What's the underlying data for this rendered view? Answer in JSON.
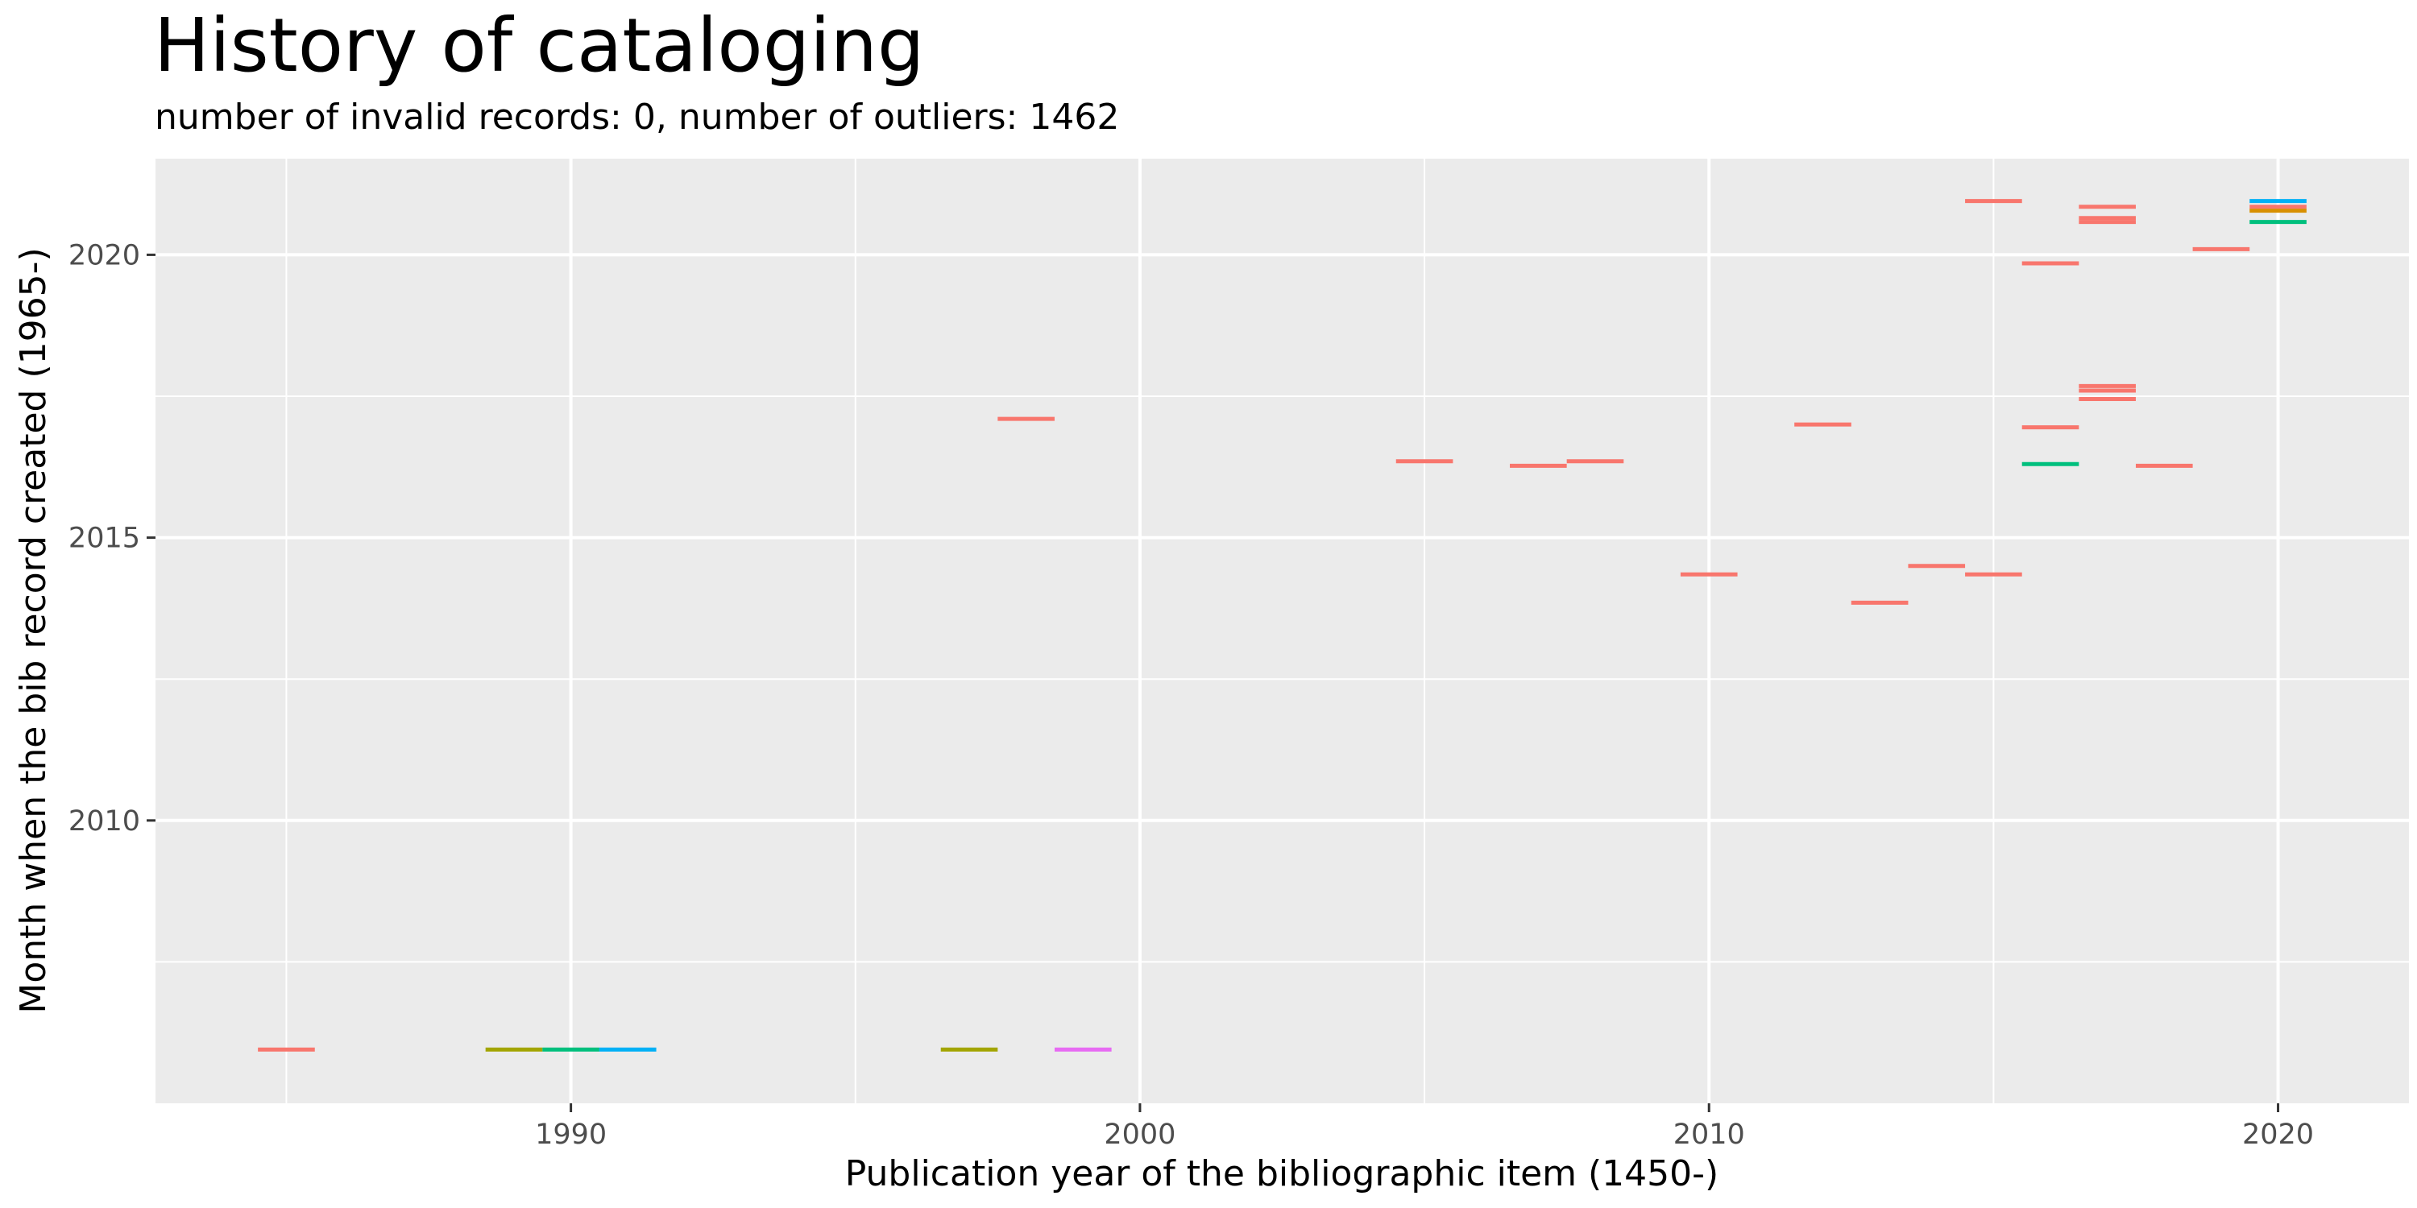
{
  "chart_data": {
    "type": "segment",
    "title": "History of cataloging",
    "subtitle": "number of invalid records: 0, number of outliers: 1462",
    "xlabel": "Publication year of the bibliographic item (1450-)",
    "ylabel": "Month when the bib record created (1965-)",
    "xlim": [
      1982.7,
      2022.3
    ],
    "ylim": [
      2005.0,
      2021.7
    ],
    "x_ticks": [
      1990,
      2000,
      2010,
      2020
    ],
    "y_ticks": [
      2010,
      2015,
      2020
    ],
    "grid": true,
    "legend": "none",
    "colors": {
      "panel": "#ebebeb",
      "grid": "#ffffff",
      "red": "#f8766d",
      "olive": "#a3a500",
      "green": "#00bf7d",
      "blue": "#00b0f6",
      "magenta": "#e76bf3",
      "orange": "#d89000"
    },
    "segments": [
      {
        "x": 1985,
        "y": 2005.95,
        "color": "red"
      },
      {
        "x": 1989,
        "y": 2005.95,
        "color": "olive"
      },
      {
        "x": 1990,
        "y": 2005.95,
        "color": "green"
      },
      {
        "x": 1991,
        "y": 2005.95,
        "color": "blue"
      },
      {
        "x": 1997,
        "y": 2005.95,
        "color": "olive"
      },
      {
        "x": 1999,
        "y": 2005.95,
        "color": "magenta"
      },
      {
        "x": 1998,
        "y": 2017.1,
        "color": "red"
      },
      {
        "x": 2005,
        "y": 2016.35,
        "color": "red"
      },
      {
        "x": 2007,
        "y": 2016.27,
        "color": "red"
      },
      {
        "x": 2008,
        "y": 2016.35,
        "color": "red"
      },
      {
        "x": 2010,
        "y": 2014.35,
        "color": "red"
      },
      {
        "x": 2012,
        "y": 2017.0,
        "color": "red"
      },
      {
        "x": 2013,
        "y": 2013.85,
        "color": "red"
      },
      {
        "x": 2014,
        "y": 2014.5,
        "color": "red"
      },
      {
        "x": 2015,
        "y": 2014.35,
        "color": "red"
      },
      {
        "x": 2015,
        "y": 2020.95,
        "color": "red"
      },
      {
        "x": 2016,
        "y": 2019.85,
        "color": "red"
      },
      {
        "x": 2016,
        "y": 2016.95,
        "color": "red"
      },
      {
        "x": 2016,
        "y": 2016.3,
        "color": "green"
      },
      {
        "x": 2017,
        "y": 2020.85,
        "color": "red"
      },
      {
        "x": 2017,
        "y": 2020.65,
        "color": "red"
      },
      {
        "x": 2017,
        "y": 2020.58,
        "color": "red"
      },
      {
        "x": 2017,
        "y": 2017.68,
        "color": "red"
      },
      {
        "x": 2017,
        "y": 2017.6,
        "color": "red"
      },
      {
        "x": 2017,
        "y": 2017.45,
        "color": "red"
      },
      {
        "x": 2018,
        "y": 2016.27,
        "color": "red"
      },
      {
        "x": 2019,
        "y": 2020.1,
        "color": "red"
      },
      {
        "x": 2020,
        "y": 2020.95,
        "color": "blue"
      },
      {
        "x": 2020,
        "y": 2020.85,
        "color": "red"
      },
      {
        "x": 2020,
        "y": 2020.78,
        "color": "orange"
      },
      {
        "x": 2020,
        "y": 2020.58,
        "color": "green"
      }
    ]
  }
}
